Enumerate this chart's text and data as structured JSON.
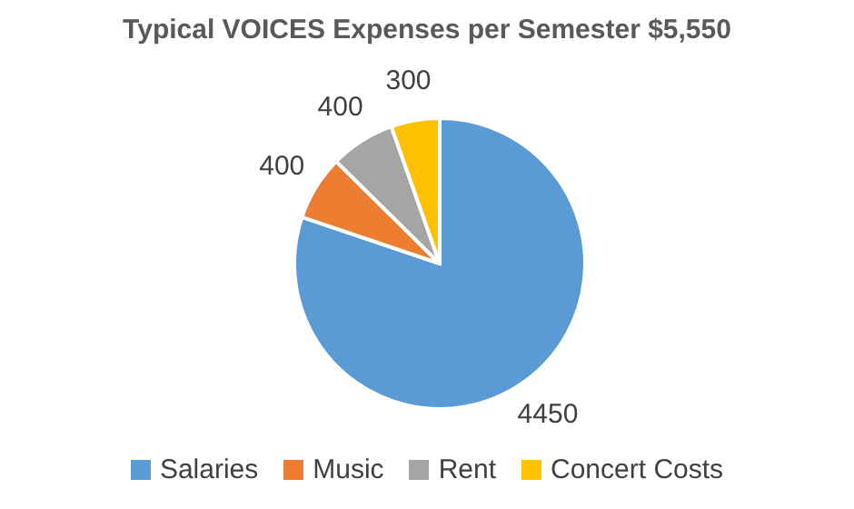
{
  "chart_data": {
    "type": "pie",
    "title": "Typical VOICES Expenses per Semester $5,550",
    "categories": [
      "Salaries",
      "Music",
      "Rent",
      "Concert Costs"
    ],
    "values": [
      4450,
      400,
      400,
      300
    ],
    "colors": [
      "#5b9bd5",
      "#ed7d31",
      "#a5a5a5",
      "#ffc000"
    ],
    "data_labels": true,
    "legend": "bottom"
  }
}
